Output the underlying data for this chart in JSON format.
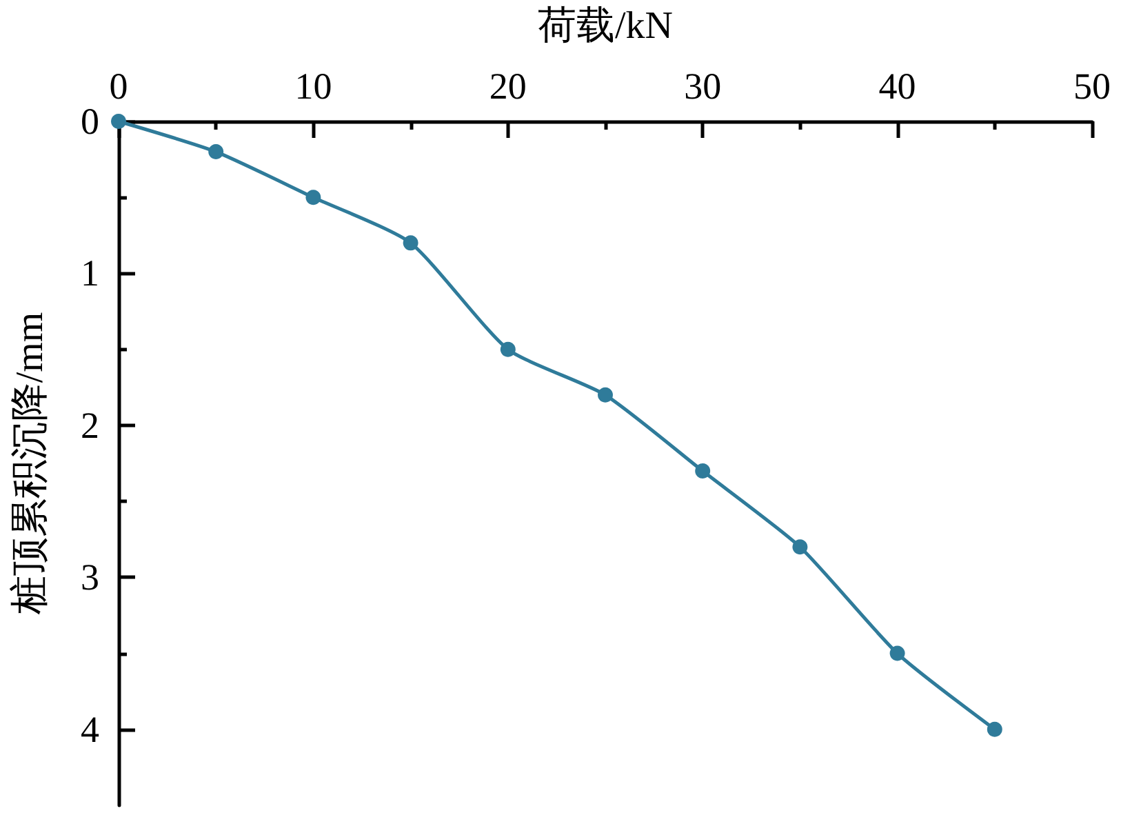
{
  "chart_data": {
    "type": "line",
    "xlabel": "荷载/kN",
    "ylabel": "桩顶累积沉降/mm",
    "x": [
      0,
      5,
      10,
      15,
      20,
      25,
      30,
      35,
      40,
      45
    ],
    "series": [
      {
        "color": "#2f7b9a",
        "values": [
          0,
          0.2,
          0.5,
          0.8,
          1.5,
          1.8,
          2.3,
          2.8,
          3.5,
          4.0
        ]
      }
    ],
    "xlim": [
      0,
      50
    ],
    "xticks": [
      0,
      {
        "value": 5,
        "label": null
      },
      10,
      {
        "value": 15,
        "label": null
      },
      20,
      {
        "value": 25,
        "label": null
      },
      30,
      {
        "value": 35,
        "label": null
      },
      40,
      {
        "value": 45,
        "label": null
      },
      50
    ],
    "ylim": [
      4.5,
      0
    ],
    "yticks": [
      0,
      {
        "value": 0.5,
        "label": null
      },
      1,
      {
        "value": 1.5,
        "label": null
      },
      2,
      {
        "value": 2.5,
        "label": null
      },
      3,
      {
        "value": 3.5,
        "label": null
      },
      4
    ],
    "marker": "circle",
    "line_style": "solid"
  }
}
